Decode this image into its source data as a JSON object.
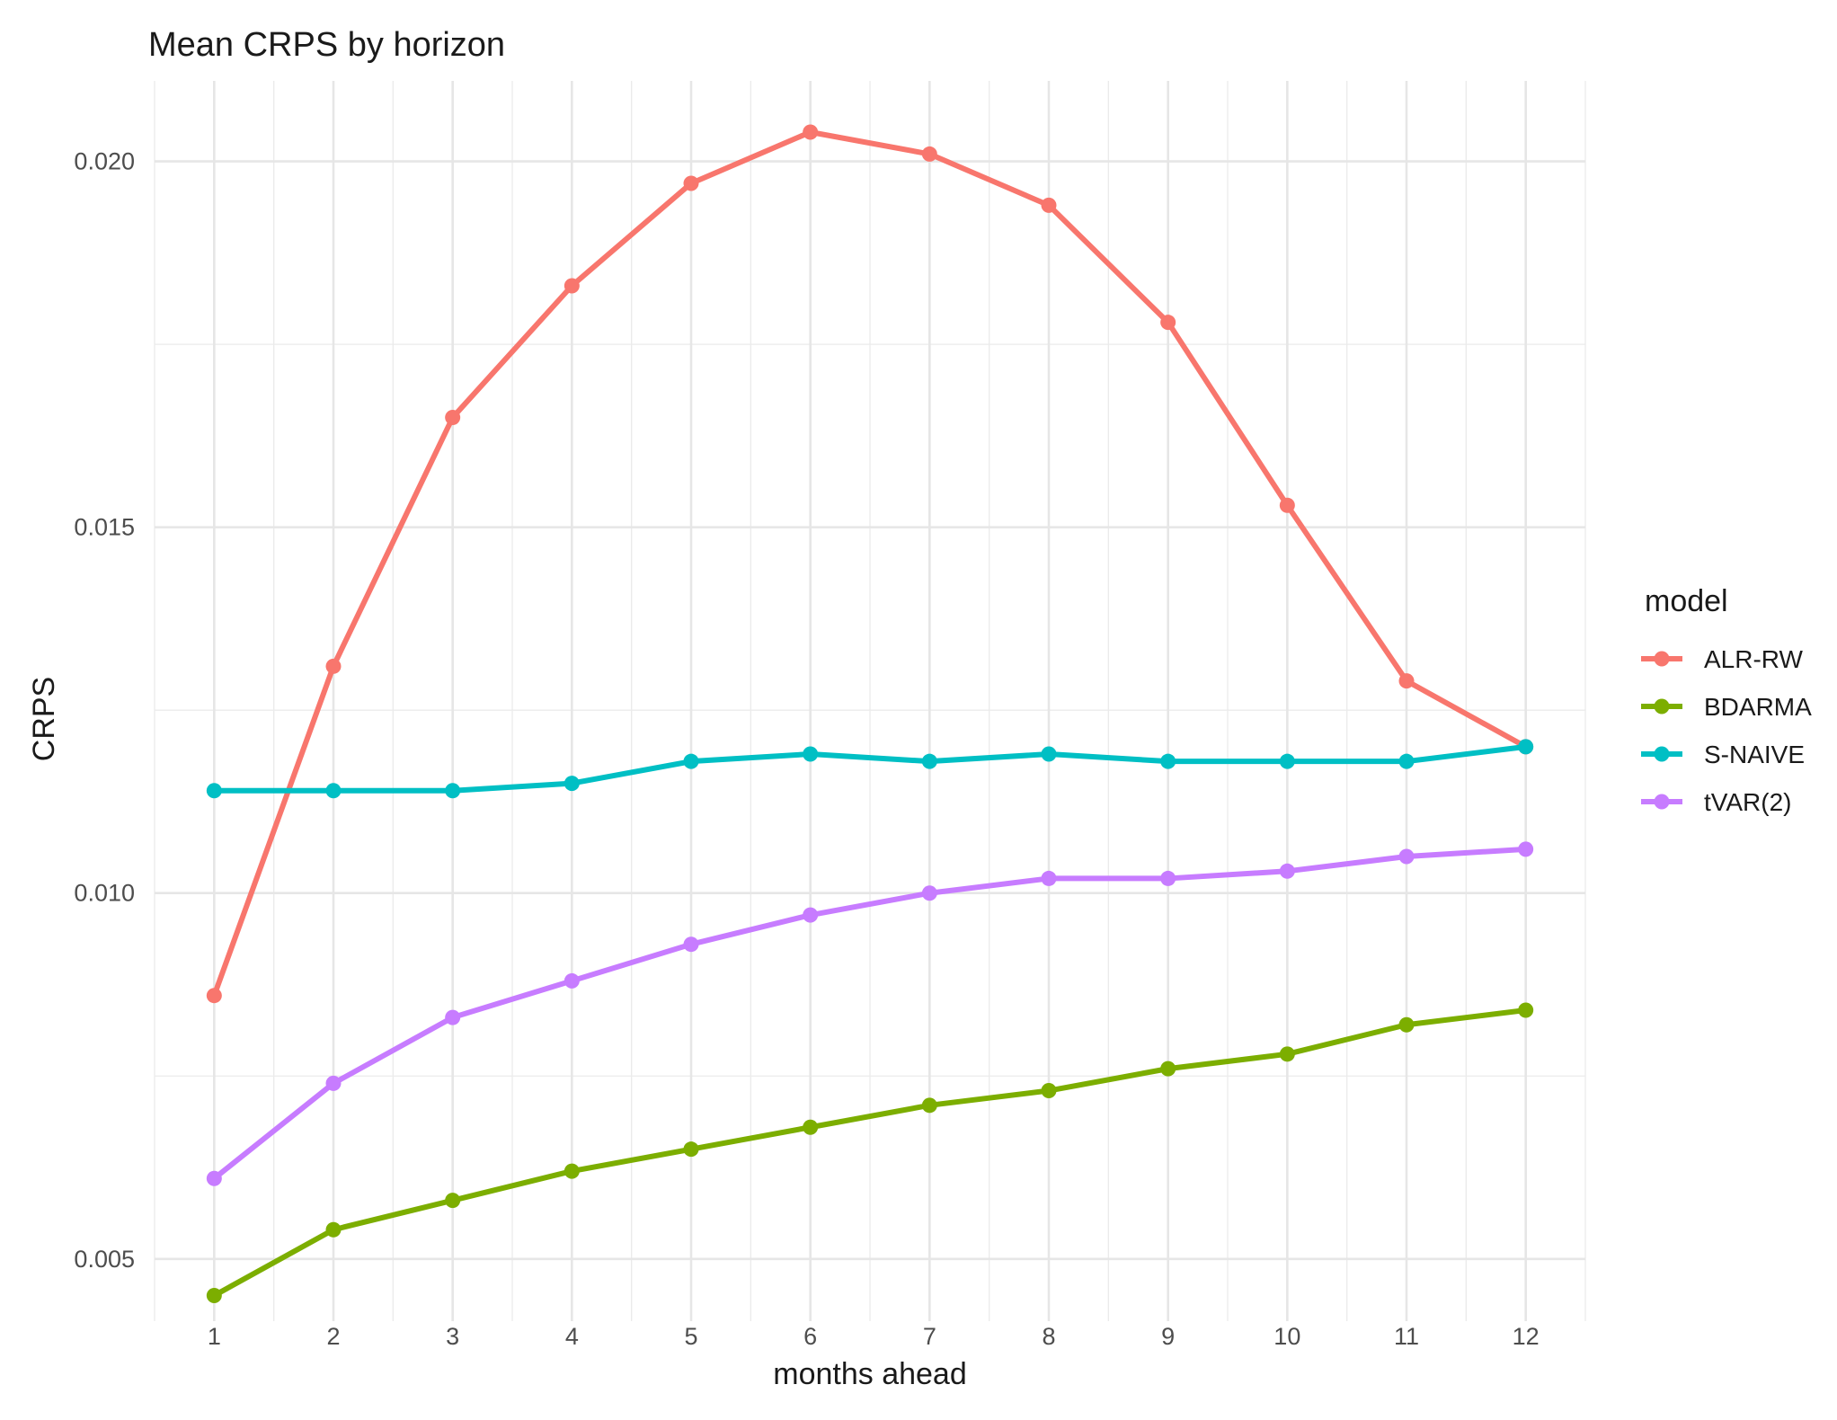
{
  "chart_data": {
    "type": "line",
    "title": "Mean CRPS by horizon",
    "xlabel": "months ahead",
    "ylabel": "CRPS",
    "x": [
      1,
      2,
      3,
      4,
      5,
      6,
      7,
      8,
      9,
      10,
      11,
      12
    ],
    "xlim": [
      0.5,
      12.5
    ],
    "ylim": [
      0.00415,
      0.0211
    ],
    "x_ticks": [
      "1",
      "2",
      "3",
      "4",
      "5",
      "6",
      "7",
      "8",
      "9",
      "10",
      "11",
      "12"
    ],
    "y_ticks": [
      0.005,
      0.01,
      0.015,
      0.02
    ],
    "y_tick_labels": [
      "0.005",
      "0.010",
      "0.015",
      "0.020"
    ],
    "grid": true,
    "legend": {
      "title": "model",
      "position": "right"
    },
    "series": [
      {
        "name": "ALR-RW",
        "color": "#F8766D",
        "values": [
          0.0086,
          0.0131,
          0.0165,
          0.0183,
          0.0197,
          0.0204,
          0.0201,
          0.0194,
          0.0178,
          0.0153,
          0.0129,
          0.012
        ]
      },
      {
        "name": "BDARMA",
        "color": "#7CAE00",
        "values": [
          0.0045,
          0.0054,
          0.0058,
          0.0062,
          0.0065,
          0.0068,
          0.0071,
          0.0073,
          0.0076,
          0.0078,
          0.0082,
          0.0084
        ]
      },
      {
        "name": "S-NAIVE",
        "color": "#00BFC4",
        "values": [
          0.0114,
          0.0114,
          0.0114,
          0.0115,
          0.0118,
          0.0119,
          0.0118,
          0.0119,
          0.0118,
          0.0118,
          0.0118,
          0.012
        ]
      },
      {
        "name": "tVAR(2)",
        "color": "#C77CFF",
        "values": [
          0.0061,
          0.0074,
          0.0083,
          0.0088,
          0.0093,
          0.0097,
          0.01,
          0.0102,
          0.0102,
          0.0103,
          0.0105,
          0.0106
        ]
      }
    ]
  }
}
